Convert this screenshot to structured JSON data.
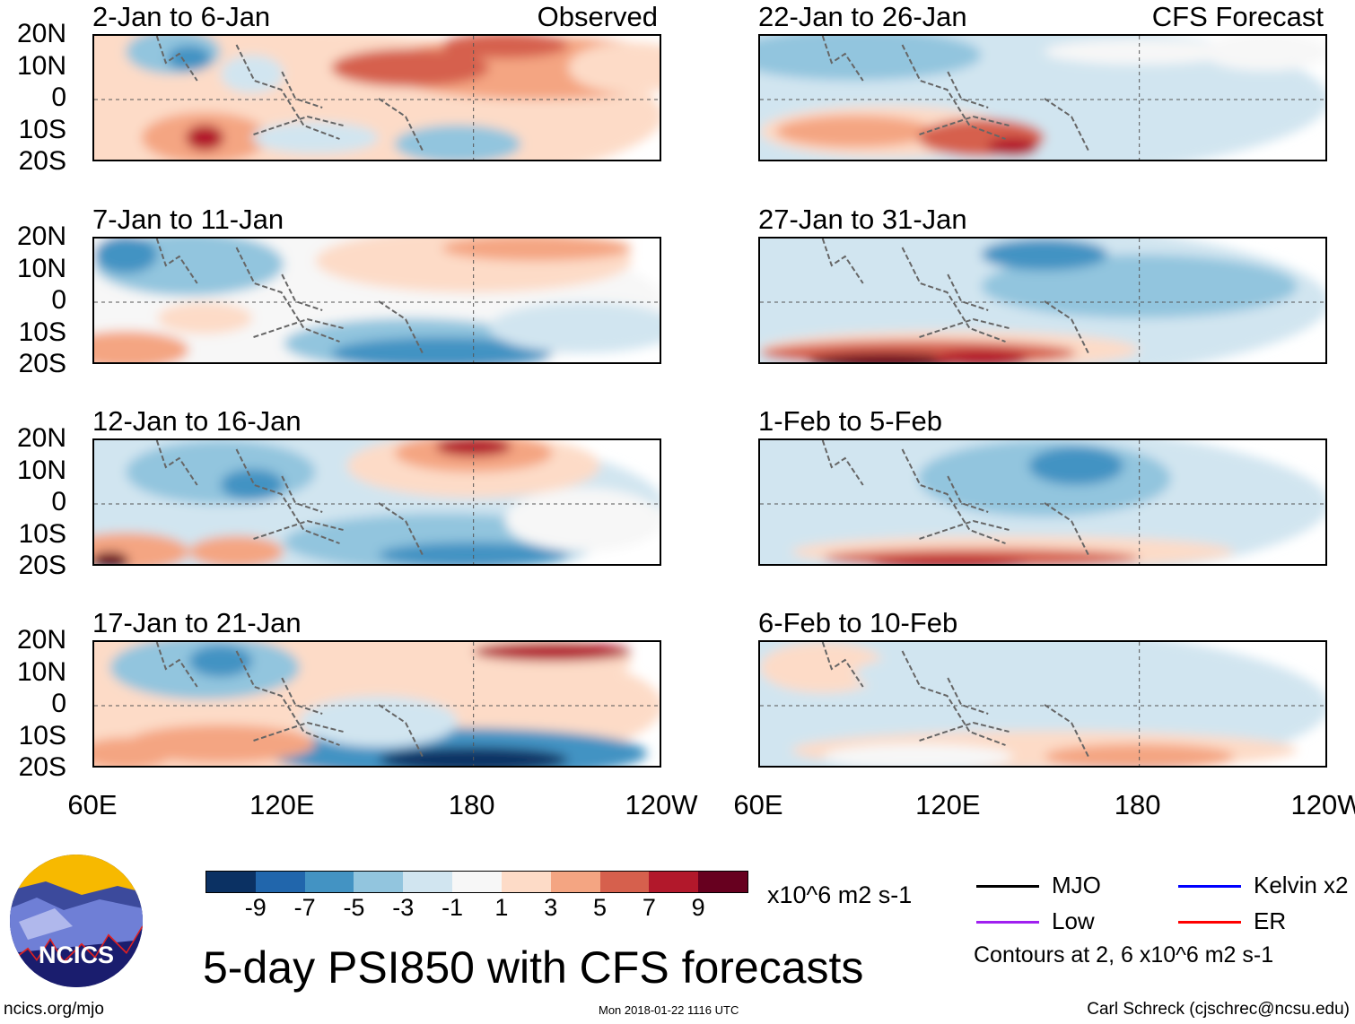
{
  "chart_data": {
    "type": "heatmap",
    "title": "5-day PSI850 with CFS forecasts",
    "units": "x10^6 m2 s-1",
    "x_ticks": [
      "60E",
      "120E",
      "180",
      "120W"
    ],
    "x_range_deg_east": [
      60,
      240
    ],
    "y_ticks": [
      "20N",
      "10N",
      "0",
      "10S",
      "20S"
    ],
    "y_range_lat": [
      -20,
      20
    ],
    "columns": [
      {
        "label": "Observed",
        "panels": [
          "2-Jan to 6-Jan",
          "7-Jan to 11-Jan",
          "12-Jan to 16-Jan",
          "17-Jan to 21-Jan"
        ]
      },
      {
        "label": "CFS Forecast",
        "panels": [
          "22-Jan to 26-Jan",
          "27-Jan to 31-Jan",
          "1-Feb to 5-Feb",
          "6-Feb to 10-Feb"
        ]
      }
    ],
    "colorbar": {
      "labels": [
        "-9",
        "-7",
        "-5",
        "-3",
        "-1",
        "1",
        "3",
        "5",
        "7",
        "9"
      ],
      "colors": [
        "#0b3163",
        "#2166ac",
        "#4393c3",
        "#92c5de",
        "#d1e5f0",
        "#f7f7f7",
        "#fddbc7",
        "#f4a582",
        "#d6604d",
        "#b2182b",
        "#67001f"
      ]
    },
    "legend": [
      {
        "label": "MJO",
        "color": "#000000"
      },
      {
        "label": "Kelvin x2",
        "color": "#0000ff"
      },
      {
        "label": "Low",
        "color": "#a020f0"
      },
      {
        "label": "ER",
        "color": "#ff0000"
      }
    ],
    "contour_note": "Contours at 2, 6 x10^6 m2 s-1"
  },
  "footer": {
    "logo_text": "NCICS",
    "url": "ncics.org/mjo",
    "timestamp": "Mon 2018-01-22 1116 UTC",
    "author": "Carl Schreck (cjschrec@ncsu.edu)"
  }
}
